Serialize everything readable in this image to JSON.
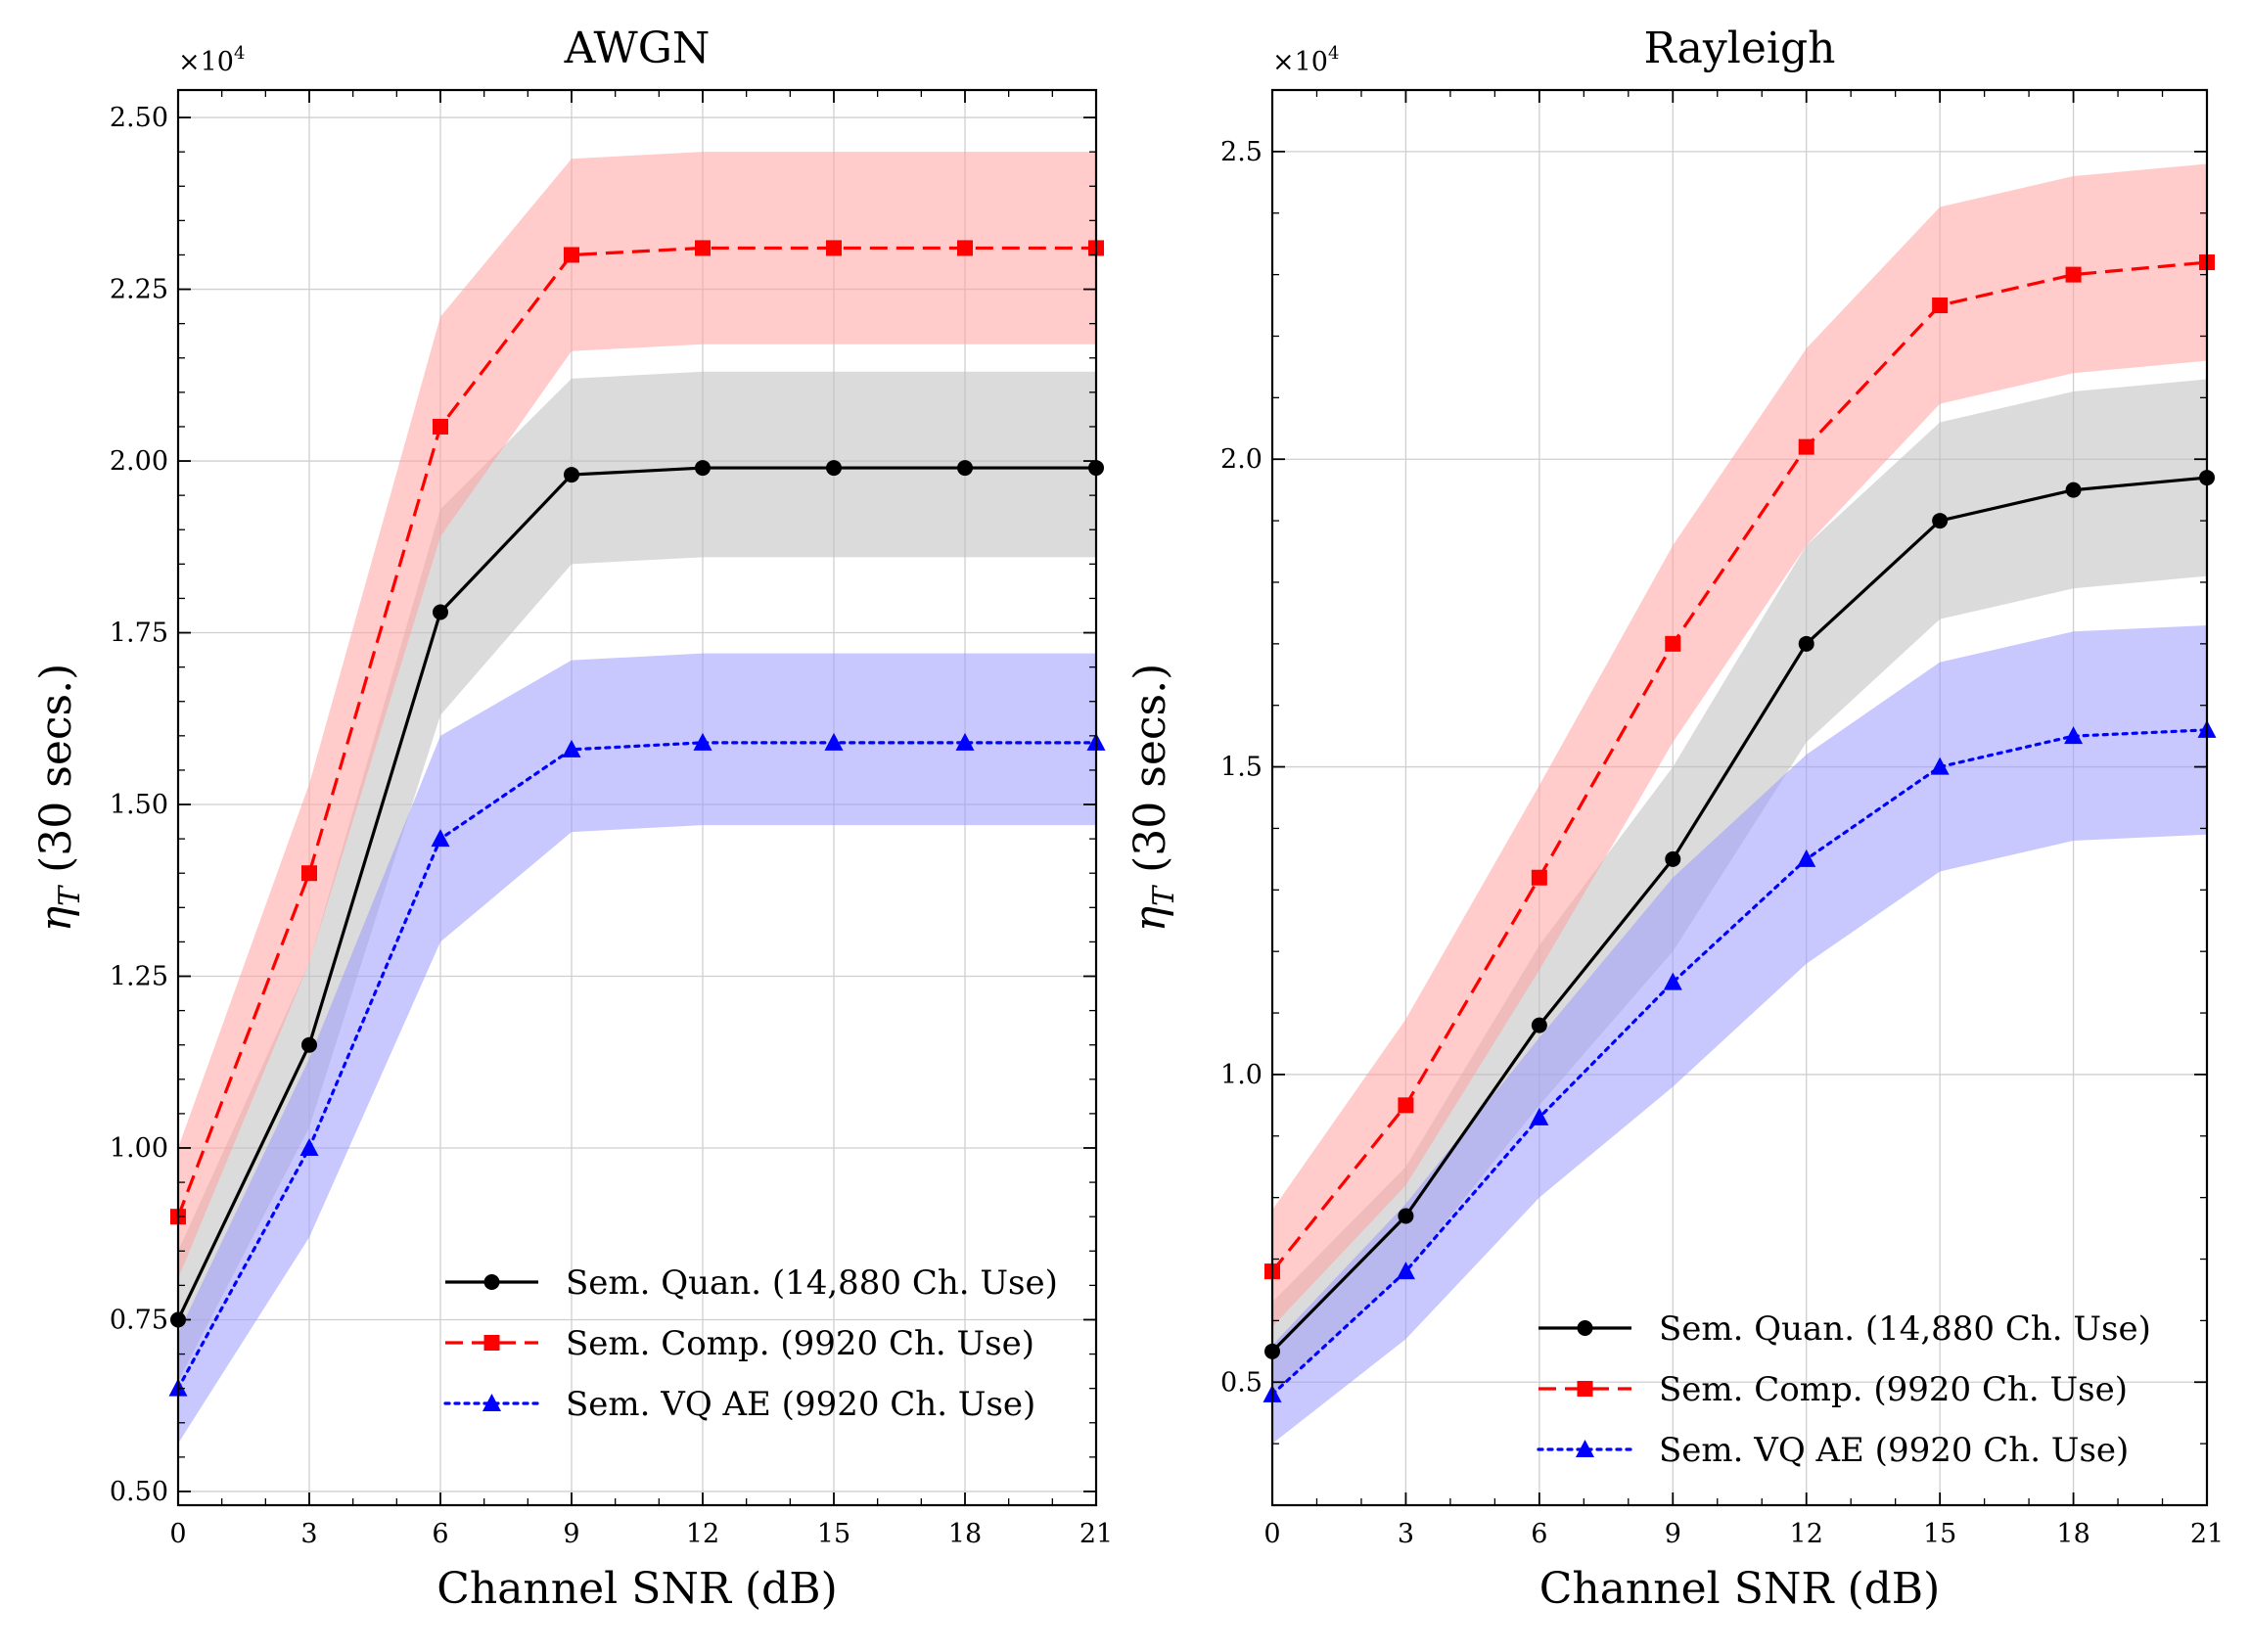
{
  "chart_data": [
    {
      "type": "line",
      "title": "AWGN",
      "xlabel": "Channel SNR (dB)",
      "ylabel_main": "η",
      "ylabel_sub": "T",
      "ylabel_rest": " (30 secs.)",
      "multiplier_base": "×10",
      "multiplier_exp": "4",
      "xlim": [
        0,
        21
      ],
      "ylim": [
        0.48,
        2.54
      ],
      "xticks": [
        0,
        3,
        6,
        9,
        12,
        15,
        18,
        21
      ],
      "xtick_labels": [
        "0",
        "3",
        "6",
        "9",
        "12",
        "15",
        "18",
        "21"
      ],
      "yticks": [
        0.5,
        0.75,
        1.0,
        1.25,
        1.5,
        1.75,
        2.0,
        2.25,
        2.5
      ],
      "ytick_labels": [
        "0.50",
        "0.75",
        "1.00",
        "1.25",
        "1.50",
        "1.75",
        "2.00",
        "2.25",
        "2.50"
      ],
      "grid": true,
      "legend_position": "bottom-right",
      "x": [
        0,
        3,
        6,
        9,
        12,
        15,
        18,
        21
      ],
      "series": [
        {
          "name": "Sem. Quan. (14,880 Ch. Use)",
          "color": "#000000",
          "band_color": "#bdbdbd",
          "marker": "circle",
          "dash": "solid",
          "values": [
            0.75,
            1.15,
            1.78,
            1.98,
            1.99,
            1.99,
            1.99,
            1.99
          ],
          "lower": [
            0.66,
            1.03,
            1.63,
            1.85,
            1.86,
            1.86,
            1.86,
            1.86
          ],
          "upper": [
            0.85,
            1.27,
            1.93,
            2.12,
            2.13,
            2.13,
            2.13,
            2.13
          ]
        },
        {
          "name": "Sem. Comp. (9920 Ch. Use)",
          "color": "#ff0000",
          "band_color": "#ffa0a0",
          "marker": "square",
          "dash": "dashed",
          "values": [
            0.9,
            1.4,
            2.05,
            2.3,
            2.31,
            2.31,
            2.31,
            2.31
          ],
          "lower": [
            0.81,
            1.27,
            1.89,
            2.16,
            2.17,
            2.17,
            2.17,
            2.17
          ],
          "upper": [
            1.0,
            1.53,
            2.21,
            2.44,
            2.45,
            2.45,
            2.45,
            2.45
          ]
        },
        {
          "name": "Sem. VQ AE (9920 Ch. Use)",
          "color": "#0000ff",
          "band_color": "#9b9bff",
          "marker": "triangle",
          "dash": "dotted",
          "values": [
            0.65,
            1.0,
            1.45,
            1.58,
            1.59,
            1.59,
            1.59,
            1.59
          ],
          "lower": [
            0.57,
            0.87,
            1.3,
            1.46,
            1.47,
            1.47,
            1.47,
            1.47
          ],
          "upper": [
            0.73,
            1.13,
            1.6,
            1.71,
            1.72,
            1.72,
            1.72,
            1.72
          ]
        }
      ]
    },
    {
      "type": "line",
      "title": "Rayleigh",
      "xlabel": "Channel SNR (dB)",
      "ylabel_main": "η",
      "ylabel_sub": "T",
      "ylabel_rest": " (30 secs.)",
      "multiplier_base": "×10",
      "multiplier_exp": "4",
      "xlim": [
        0,
        21
      ],
      "ylim": [
        0.3,
        2.6
      ],
      "xticks": [
        0,
        3,
        6,
        9,
        12,
        15,
        18,
        21
      ],
      "xtick_labels": [
        "0",
        "3",
        "6",
        "9",
        "12",
        "15",
        "18",
        "21"
      ],
      "yticks": [
        0.5,
        1.0,
        1.5,
        2.0,
        2.5
      ],
      "ytick_labels": [
        "0.5",
        "1.0",
        "1.5",
        "2.0",
        "2.5"
      ],
      "grid": true,
      "legend_position": "bottom-right",
      "x": [
        0,
        3,
        6,
        9,
        12,
        15,
        18,
        21
      ],
      "series": [
        {
          "name": "Sem. Quan. (14,880 Ch. Use)",
          "color": "#000000",
          "band_color": "#bdbdbd",
          "marker": "circle",
          "dash": "solid",
          "values": [
            0.55,
            0.77,
            1.08,
            1.35,
            1.7,
            1.9,
            1.95,
            1.97
          ],
          "lower": [
            0.48,
            0.68,
            0.95,
            1.2,
            1.54,
            1.74,
            1.79,
            1.81
          ],
          "upper": [
            0.63,
            0.85,
            1.21,
            1.5,
            1.86,
            2.06,
            2.11,
            2.13
          ]
        },
        {
          "name": "Sem. Comp. (9920 Ch. Use)",
          "color": "#ff0000",
          "band_color": "#ffa0a0",
          "marker": "square",
          "dash": "dashed",
          "values": [
            0.68,
            0.95,
            1.32,
            1.7,
            2.02,
            2.25,
            2.3,
            2.32
          ],
          "lower": [
            0.59,
            0.82,
            1.17,
            1.54,
            1.86,
            2.09,
            2.14,
            2.16
          ],
          "upper": [
            0.78,
            1.09,
            1.47,
            1.86,
            2.18,
            2.41,
            2.46,
            2.48
          ]
        },
        {
          "name": "Sem. VQ AE (9920 Ch. Use)",
          "color": "#0000ff",
          "band_color": "#9b9bff",
          "marker": "triangle",
          "dash": "dotted",
          "values": [
            0.48,
            0.68,
            0.93,
            1.15,
            1.35,
            1.5,
            1.55,
            1.56
          ],
          "lower": [
            0.4,
            0.57,
            0.8,
            0.98,
            1.18,
            1.33,
            1.38,
            1.39
          ],
          "upper": [
            0.56,
            0.79,
            1.06,
            1.32,
            1.52,
            1.67,
            1.72,
            1.73
          ]
        }
      ]
    }
  ]
}
